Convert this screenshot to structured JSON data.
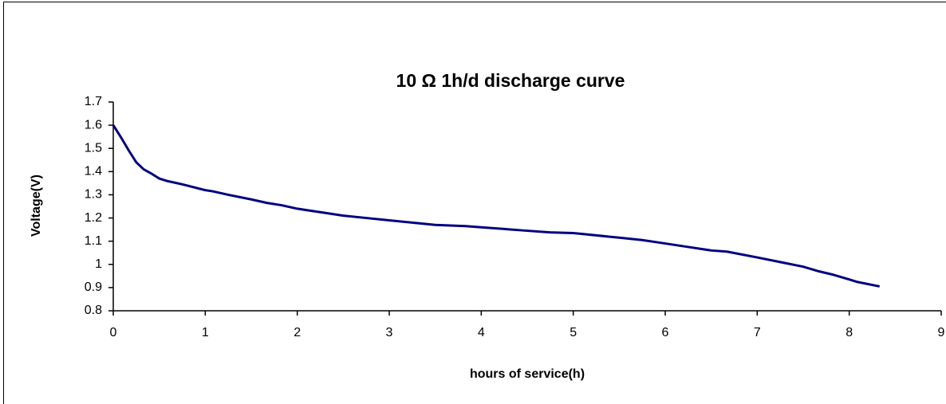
{
  "chart_data": {
    "type": "line",
    "title": "10 Ω 1h/d discharge curve",
    "x_label": "hours of service(h)",
    "y_label": "Voltage(V)",
    "x": [
      0,
      0.08,
      0.17,
      0.25,
      0.33,
      0.42,
      0.5,
      0.58,
      0.75,
      1,
      1.08,
      1.25,
      1.5,
      1.67,
      1.83,
      2,
      2.25,
      2.5,
      2.75,
      3,
      3.25,
      3.5,
      3.83,
      4,
      4.5,
      4.75,
      5,
      5.08,
      5.5,
      5.75,
      6,
      6.25,
      6.5,
      6.67,
      7,
      7.25,
      7.5,
      7.67,
      7.83,
      8,
      8.08,
      8.33
    ],
    "values": [
      1.6,
      1.55,
      1.49,
      1.44,
      1.41,
      1.39,
      1.37,
      1.36,
      1.345,
      1.32,
      1.315,
      1.3,
      1.28,
      1.265,
      1.255,
      1.24,
      1.225,
      1.21,
      1.2,
      1.19,
      1.18,
      1.17,
      1.165,
      1.16,
      1.145,
      1.138,
      1.135,
      1.132,
      1.115,
      1.105,
      1.09,
      1.075,
      1.06,
      1.055,
      1.03,
      1.01,
      0.99,
      0.97,
      0.955,
      0.935,
      0.925,
      0.905
    ],
    "color": "#000080",
    "xlim": [
      0,
      9
    ],
    "xticks": [
      0,
      1,
      2,
      3,
      4,
      5,
      6,
      7,
      8,
      9
    ],
    "ylim": [
      0.8,
      1.7
    ],
    "yticks": [
      0.8,
      0.9,
      1,
      1.1,
      1.2,
      1.3,
      1.4,
      1.5,
      1.6,
      1.7
    ],
    "grid": false
  }
}
